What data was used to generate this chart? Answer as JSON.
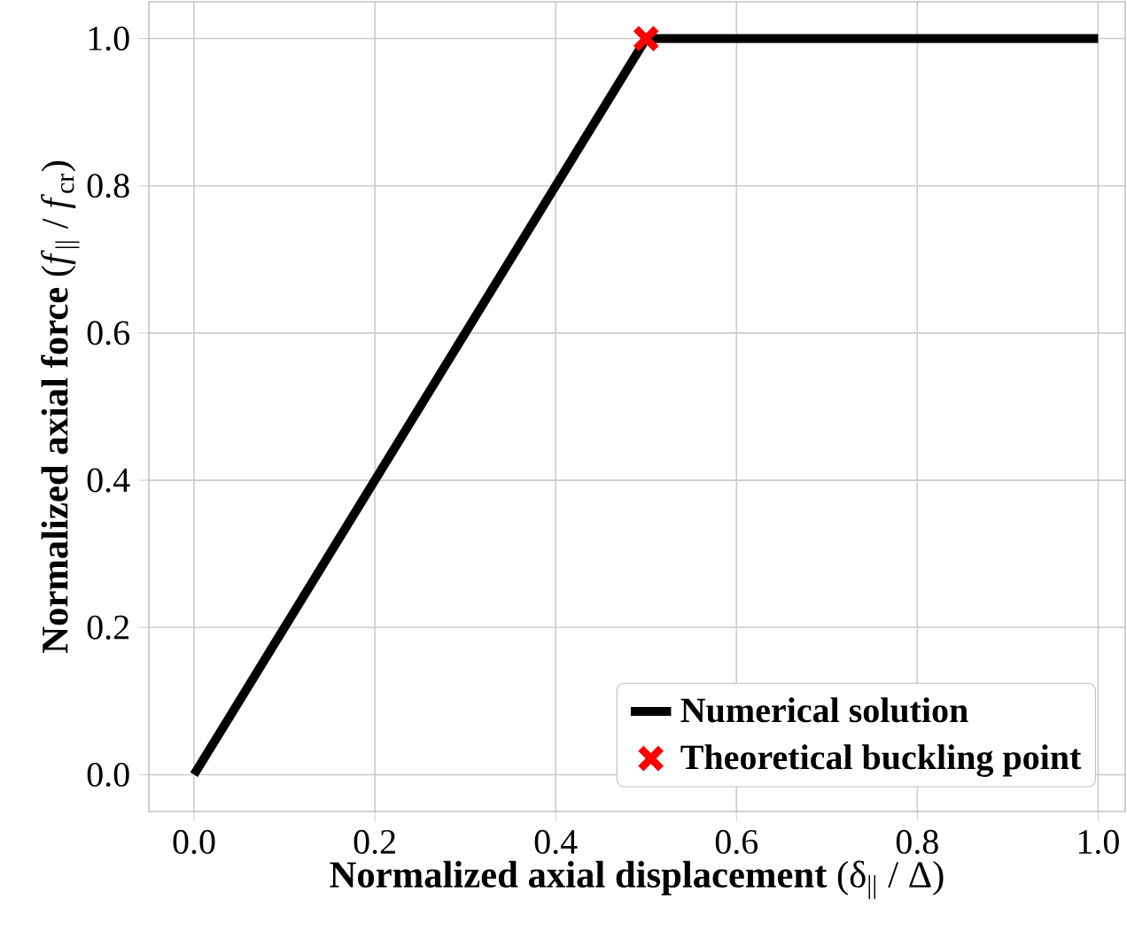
{
  "chart_data": {
    "type": "line",
    "xlabel": "**Normalized axial displacement** (δ$_{||}$ / Δ)",
    "ylabel": "**Normalized axial force** (*f*$_{||}$ / *f*$_{cr}$)",
    "xlim": [
      -0.05,
      1.03
    ],
    "ylim": [
      -0.05,
      1.05
    ],
    "xticks": [
      {
        "value": 0,
        "label": "0.0"
      },
      0.2,
      0.4,
      0.6,
      0.8,
      {
        "value": 1,
        "label": "1.0"
      }
    ],
    "yticks": [
      {
        "value": 0,
        "label": "0.0"
      },
      0.2,
      0.4,
      0.6,
      0.8,
      {
        "value": 1,
        "label": "1.0"
      }
    ],
    "grid": true,
    "legend": "bottom right",
    "series": [
      {
        "name": "Numerical solution",
        "color": "#000000",
        "x": [
          0,
          0.5,
          1.0
        ],
        "values": [
          0,
          1,
          1
        ],
        "marker": "none",
        "line_style": "solid"
      },
      {
        "name": "Theoretical buckling point",
        "type": "scatter",
        "color": "#ff0000",
        "x": [
          0.5
        ],
        "values": [
          1
        ],
        "marker": "cross"
      }
    ]
  }
}
